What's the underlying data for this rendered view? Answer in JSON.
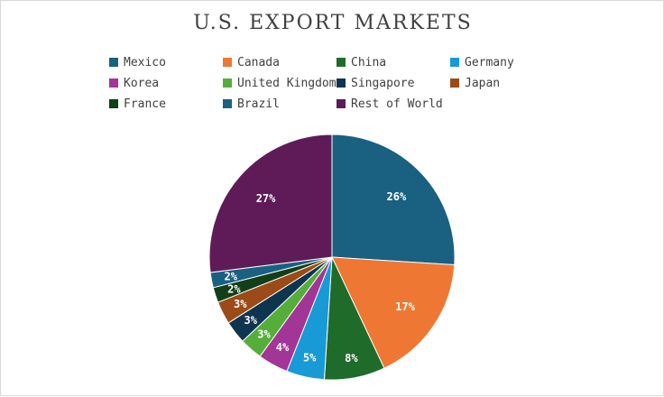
{
  "chart_data": {
    "type": "pie",
    "title": "U.S. EXPORT MARKETS",
    "legend_position": "top",
    "slices": [
      {
        "name": "Mexico",
        "value": 26,
        "label": "26%",
        "color": "#1a6080"
      },
      {
        "name": "Canada",
        "value": 17,
        "label": "17%",
        "color": "#ee7733"
      },
      {
        "name": "China",
        "value": 8,
        "label": "8%",
        "color": "#1f6b2a"
      },
      {
        "name": "Germany",
        "value": 5,
        "label": "5%",
        "color": "#189ad6"
      },
      {
        "name": "Korea",
        "value": 4,
        "label": "4%",
        "color": "#a23595"
      },
      {
        "name": "United Kingdom",
        "value": 3,
        "label": "3%",
        "color": "#55ae3a"
      },
      {
        "name": "Singapore",
        "value": 3,
        "label": "3%",
        "color": "#0e3550"
      },
      {
        "name": "Japan",
        "value": 3,
        "label": "3%",
        "color": "#9c4a17"
      },
      {
        "name": "France",
        "value": 2,
        "label": "2%",
        "color": "#123f19"
      },
      {
        "name": "Brazil",
        "value": 2,
        "label": "2%",
        "color": "#1a6080"
      },
      {
        "name": "Rest of World",
        "value": 27,
        "label": "27%",
        "color": "#5e1b58"
      }
    ]
  }
}
